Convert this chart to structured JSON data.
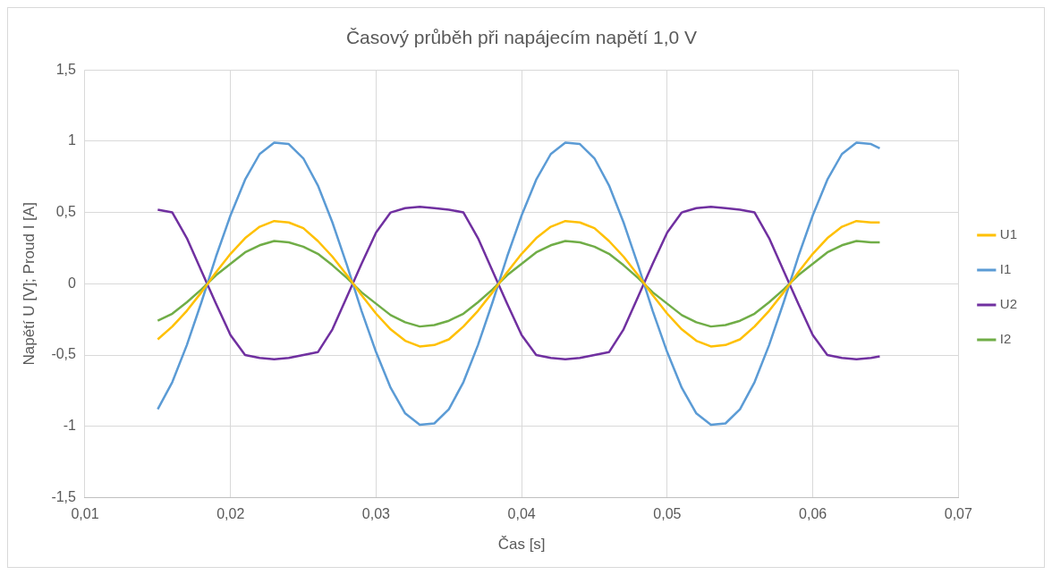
{
  "chart_data": {
    "type": "line",
    "title": "Časový průběh při napájecím napětí 1,0 V",
    "xlabel": "Čas [s]",
    "ylabel": "Napětí U [V]; Proud I [A]",
    "x": [
      0.015,
      0.016,
      0.017,
      0.018,
      0.019,
      0.02,
      0.021,
      0.022,
      0.023,
      0.024,
      0.025,
      0.026,
      0.027,
      0.028,
      0.029,
      0.03,
      0.031,
      0.032,
      0.033,
      0.034,
      0.035,
      0.036,
      0.037,
      0.038,
      0.039,
      0.04,
      0.041,
      0.042,
      0.043,
      0.044,
      0.045,
      0.046,
      0.047,
      0.048,
      0.049,
      0.05,
      0.051,
      0.052,
      0.053,
      0.054,
      0.055,
      0.056,
      0.057,
      0.058,
      0.059,
      0.06,
      0.061,
      0.062,
      0.063,
      0.064,
      0.0646
    ],
    "series": [
      {
        "name": "U1",
        "color": "#ffc000",
        "values": [
          -0.39,
          -0.3,
          -0.19,
          -0.06,
          0.08,
          0.21,
          0.32,
          0.4,
          0.44,
          0.43,
          0.39,
          0.3,
          0.19,
          0.06,
          -0.08,
          -0.21,
          -0.32,
          -0.4,
          -0.44,
          -0.43,
          -0.39,
          -0.3,
          -0.19,
          -0.06,
          0.08,
          0.21,
          0.32,
          0.4,
          0.44,
          0.43,
          0.39,
          0.3,
          0.19,
          0.06,
          -0.08,
          -0.21,
          -0.32,
          -0.4,
          -0.44,
          -0.43,
          -0.39,
          -0.3,
          -0.19,
          -0.06,
          0.08,
          0.21,
          0.32,
          0.4,
          0.44,
          0.43,
          0.43
        ]
      },
      {
        "name": "I1",
        "color": "#5b9bd5",
        "values": [
          -0.88,
          -0.69,
          -0.43,
          -0.13,
          0.19,
          0.48,
          0.73,
          0.91,
          0.99,
          0.98,
          0.88,
          0.69,
          0.43,
          0.13,
          -0.19,
          -0.48,
          -0.73,
          -0.91,
          -0.99,
          -0.98,
          -0.88,
          -0.69,
          -0.43,
          -0.13,
          0.19,
          0.48,
          0.73,
          0.91,
          0.99,
          0.98,
          0.88,
          0.69,
          0.43,
          0.13,
          -0.19,
          -0.48,
          -0.73,
          -0.91,
          -0.99,
          -0.98,
          -0.88,
          -0.69,
          -0.43,
          -0.13,
          0.19,
          0.48,
          0.73,
          0.91,
          0.99,
          0.98,
          0.95
        ]
      },
      {
        "name": "U2",
        "color": "#7030a0",
        "values": [
          0.52,
          0.5,
          0.32,
          0.09,
          -0.14,
          -0.36,
          -0.5,
          -0.52,
          -0.53,
          -0.52,
          -0.5,
          -0.48,
          -0.32,
          -0.09,
          0.14,
          0.36,
          0.5,
          0.53,
          0.54,
          0.53,
          0.52,
          0.5,
          0.32,
          0.09,
          -0.14,
          -0.36,
          -0.5,
          -0.52,
          -0.53,
          -0.52,
          -0.5,
          -0.48,
          -0.32,
          -0.09,
          0.14,
          0.36,
          0.5,
          0.53,
          0.54,
          0.53,
          0.52,
          0.5,
          0.32,
          0.09,
          -0.14,
          -0.36,
          -0.5,
          -0.52,
          -0.53,
          -0.52,
          -0.51
        ]
      },
      {
        "name": "I2",
        "color": "#70ad47",
        "values": [
          -0.26,
          -0.21,
          -0.13,
          -0.04,
          0.06,
          0.14,
          0.22,
          0.27,
          0.3,
          0.29,
          0.26,
          0.21,
          0.13,
          0.04,
          -0.06,
          -0.14,
          -0.22,
          -0.27,
          -0.3,
          -0.29,
          -0.26,
          -0.21,
          -0.13,
          -0.04,
          0.06,
          0.14,
          0.22,
          0.27,
          0.3,
          0.29,
          0.26,
          0.21,
          0.13,
          0.04,
          -0.06,
          -0.14,
          -0.22,
          -0.27,
          -0.3,
          -0.29,
          -0.26,
          -0.21,
          -0.13,
          -0.04,
          0.06,
          0.14,
          0.22,
          0.27,
          0.3,
          0.29,
          0.29
        ]
      }
    ],
    "xlim": [
      0.01,
      0.07
    ],
    "xticks": [
      {
        "value": 0.01,
        "label": "0,01"
      },
      {
        "value": 0.02,
        "label": "0,02"
      },
      {
        "value": 0.03,
        "label": "0,03"
      },
      {
        "value": 0.04,
        "label": "0,04"
      },
      {
        "value": 0.05,
        "label": "0,05"
      },
      {
        "value": 0.06,
        "label": "0,06"
      },
      {
        "value": 0.07,
        "label": "0,07"
      }
    ],
    "ylim": [
      -1.5,
      1.5
    ],
    "yticks": [
      {
        "value": -1.5,
        "label": "-1,5"
      },
      -1,
      {
        "value": -0.5,
        "label": "-0,5"
      },
      0,
      {
        "value": 0.5,
        "label": "0,5"
      },
      1,
      {
        "value": 1.5,
        "label": "1,5"
      }
    ],
    "grid": true,
    "legend": "right",
    "marker": "none",
    "line_style": "solid"
  }
}
